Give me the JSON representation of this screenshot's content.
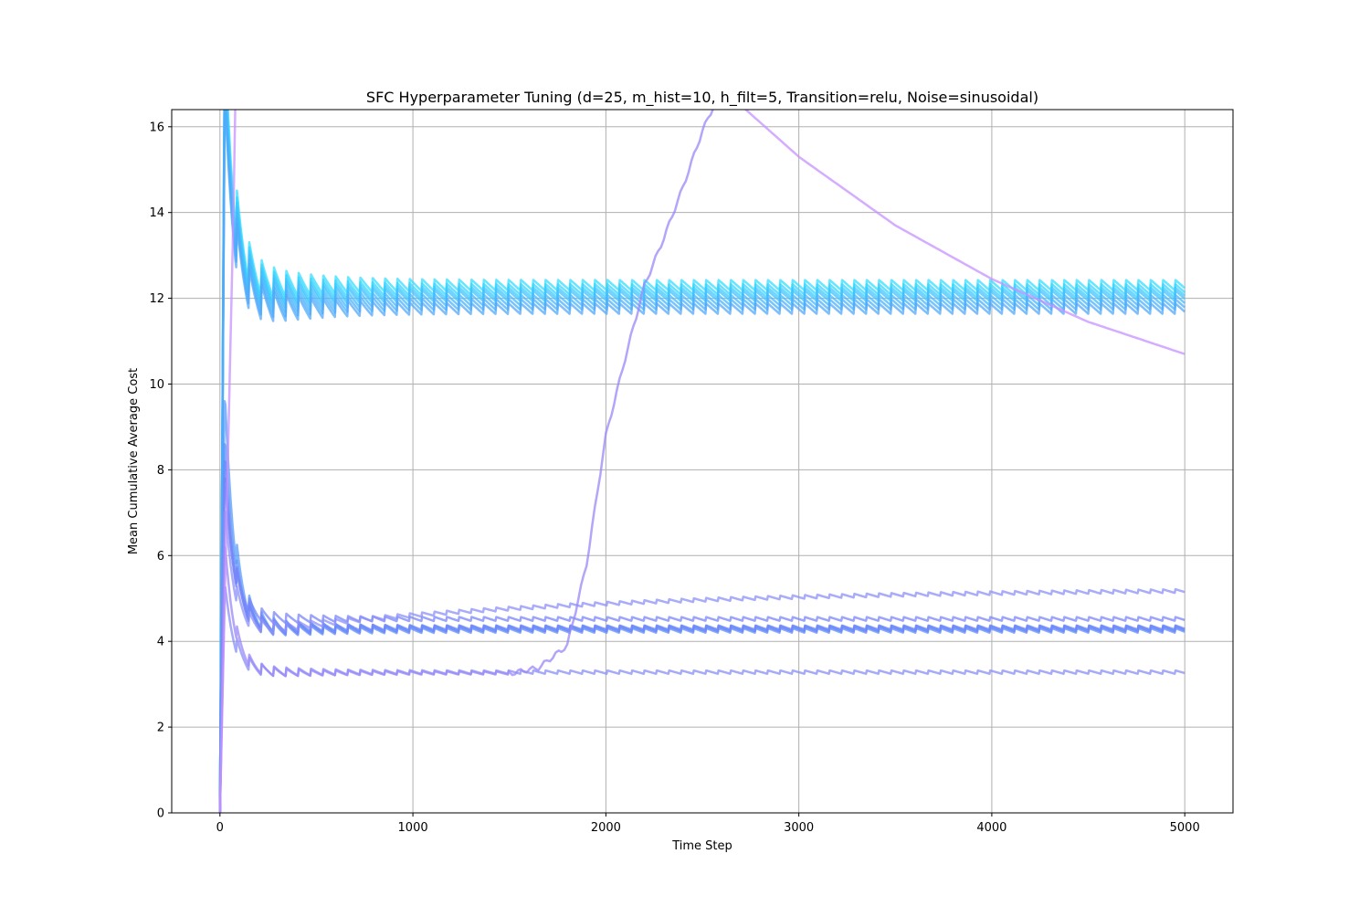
{
  "chart_data": {
    "type": "line",
    "title": "SFC Hyperparameter Tuning (d=25, m_hist=10, h_filt=5, Transition=relu, Noise=sinusoidal)",
    "xlabel": "Time Step",
    "ylabel": "Mean Cumulative Average Cost",
    "xlim": [
      -250,
      5250
    ],
    "ylim": [
      0,
      16.4
    ],
    "xticks": [
      0,
      1000,
      2000,
      3000,
      4000,
      5000
    ],
    "yticks": [
      0,
      2,
      4,
      6,
      8,
      10,
      12,
      14,
      16
    ],
    "grid": true,
    "legend": "none",
    "series": [
      {
        "color": "#33ddff",
        "width": 2.5,
        "peak": 17.5,
        "final": 12.3,
        "osc_amp": 1.4
      },
      {
        "color": "#38d4ff",
        "width": 2.5,
        "peak": 17.2,
        "final": 12.2,
        "osc_amp": 1.4
      },
      {
        "color": "#3ccafe",
        "width": 2.5,
        "peak": 17.0,
        "final": 12.12,
        "osc_amp": 1.4
      },
      {
        "color": "#41c0fd",
        "width": 2.5,
        "peak": 16.8,
        "final": 12.05,
        "osc_amp": 1.4
      },
      {
        "color": "#45b8fc",
        "width": 2.5,
        "peak": 16.6,
        "final": 11.95,
        "osc_amp": 1.4
      },
      {
        "color": "#4bb0fb",
        "width": 2.5,
        "peak": 16.4,
        "final": 11.85,
        "osc_amp": 1.4
      },
      {
        "color": "#52a8fa",
        "width": 2.5,
        "peak": 16.2,
        "final": 11.75,
        "osc_amp": 1.4
      },
      {
        "color": "#5a9cfa",
        "width": 2.5,
        "peak": 9.6,
        "final": 4.3,
        "osc_amp": 0.7
      },
      {
        "color": "#6294fa",
        "width": 2.5,
        "peak": 8.6,
        "final": 4.28,
        "osc_amp": 0.6
      },
      {
        "color": "#6a8cf9",
        "width": 2.5,
        "peak": 8.2,
        "final": 4.25,
        "osc_amp": 0.6
      },
      {
        "color": "#7284f8",
        "width": 2.5,
        "peak": 7.8,
        "final": 4.32,
        "osc_amp": 0.55
      },
      {
        "color": "#7a86f8",
        "width": 2.5,
        "peak": 7.6,
        "final": 4.52,
        "osc_amp": 0.5
      },
      {
        "color": "#8c90f7",
        "width": 2.5,
        "peak": 7.0,
        "final": 5.24,
        "osc_amp": 0.5,
        "dip": 4.15
      },
      {
        "color": "#8a8ef7",
        "width": 2.5,
        "peak": 5.2,
        "final": 3.28,
        "osc_amp": 0.45
      },
      {
        "color": "#9a88f8",
        "width": 2.5,
        "peak": 6.2,
        "final": 3.26,
        "osc_amp": 0.4,
        "divergent": "rise",
        "points": [
          [
            1500,
            3.25
          ],
          [
            1650,
            3.38
          ],
          [
            1800,
            3.9
          ],
          [
            1900,
            5.8
          ],
          [
            2000,
            8.8
          ],
          [
            2100,
            10.6
          ],
          [
            2200,
            12.3
          ],
          [
            2300,
            13.4
          ],
          [
            2400,
            14.6
          ],
          [
            2500,
            15.9
          ],
          [
            2600,
            16.9
          ]
        ]
      },
      {
        "color": "#c791ff",
        "width": 2.5,
        "divergent": "spike",
        "points": [
          [
            0,
            0
          ],
          [
            40,
            8.0
          ],
          [
            70,
            14.0
          ],
          [
            85,
            18.0
          ],
          [
            2700,
            16.5
          ],
          [
            3000,
            15.3
          ],
          [
            3500,
            13.7
          ],
          [
            4000,
            12.45
          ],
          [
            4500,
            11.45
          ],
          [
            5000,
            10.7
          ]
        ]
      }
    ]
  }
}
